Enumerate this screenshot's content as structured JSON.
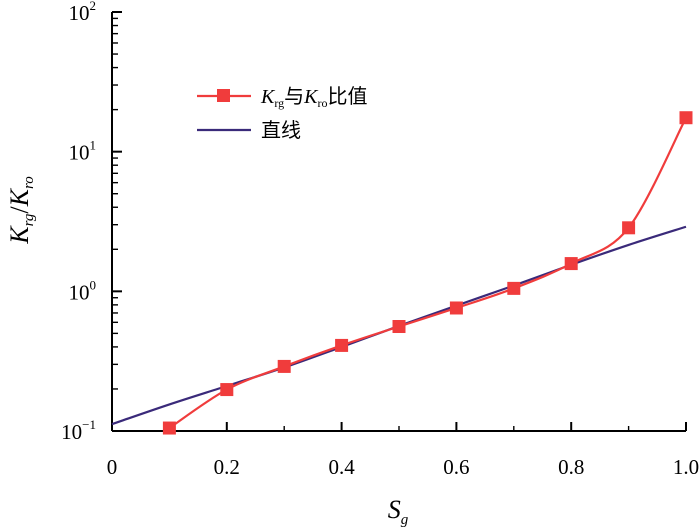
{
  "chart_data": {
    "type": "line",
    "xlabel": {
      "main": "S",
      "sub": "g"
    },
    "ylabel": {
      "k1": "K",
      "sub1": "rg",
      "slash": "/",
      "k2": "K",
      "sub2": "ro"
    },
    "x_ticks": [
      "0",
      "0.2",
      "0.4",
      "0.6",
      "0.8",
      "1.0"
    ],
    "x_tick_values": [
      0,
      0.2,
      0.4,
      0.6,
      0.8,
      1.0
    ],
    "y_ticks": [
      {
        "base": "10",
        "exp": "−1",
        "value": 0.1
      },
      {
        "base": "10",
        "exp": "0",
        "value": 1
      },
      {
        "base": "10",
        "exp": "1",
        "value": 10
      },
      {
        "base": "10",
        "exp": "2",
        "value": 100
      }
    ],
    "xlim": [
      0,
      1.0
    ],
    "ylim": [
      0.1,
      100
    ],
    "yscale": "log",
    "grid": false,
    "legend_position": "top-left",
    "series": [
      {
        "legend": {
          "k1": "K",
          "sub1": "rg",
          "mid": "与",
          "k2": "K",
          "sub2": "ro",
          "tail": "比值"
        },
        "color": "#f03c3c",
        "marker": "square",
        "x": [
          0.1,
          0.2,
          0.3,
          0.4,
          0.5,
          0.6,
          0.7,
          0.8,
          0.9,
          1.0
        ],
        "y": [
          0.105,
          0.198,
          0.29,
          0.41,
          0.56,
          0.76,
          1.05,
          1.58,
          2.85,
          17.5
        ]
      },
      {
        "legend": {
          "label": "直线"
        },
        "color": "#3a2a7a",
        "marker": "none",
        "x": [
          0.0,
          0.1,
          0.2,
          0.3,
          0.4,
          0.5,
          0.6,
          0.7,
          0.8,
          0.9,
          1.0
        ],
        "y": [
          0.112,
          0.155,
          0.21,
          0.285,
          0.4,
          0.565,
          0.79,
          1.1,
          1.55,
          2.15,
          2.9
        ]
      }
    ]
  }
}
